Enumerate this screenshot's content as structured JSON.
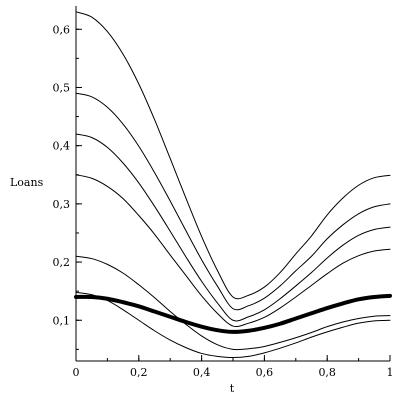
{
  "chart_data": {
    "type": "line",
    "title": "",
    "xlabel": "t",
    "ylabel": "Loans",
    "xlim": [
      0,
      1
    ],
    "ylim": [
      0.03,
      0.64
    ],
    "grid": false,
    "x_ticks": [
      {
        "value": 0,
        "label": "0"
      },
      {
        "value": 0.2,
        "label": "0,2"
      },
      {
        "value": 0.4,
        "label": "0,4"
      },
      {
        "value": 0.6,
        "label": "0,6"
      },
      {
        "value": 0.8,
        "label": "0,8"
      },
      {
        "value": 1,
        "label": "1"
      }
    ],
    "y_ticks": [
      {
        "value": 0.1,
        "label": "0,1"
      },
      {
        "value": 0.2,
        "label": "0,2"
      },
      {
        "value": 0.3,
        "label": "0,3"
      },
      {
        "value": 0.4,
        "label": "0,4"
      },
      {
        "value": 0.5,
        "label": "0,5"
      },
      {
        "value": 0.6,
        "label": "0,6"
      }
    ],
    "x_minor_step": 0.1,
    "y_minor_step": 0.05,
    "x": [
      0,
      0.05,
      0.1,
      0.15,
      0.2,
      0.25,
      0.3,
      0.35,
      0.4,
      0.45,
      0.5,
      0.55,
      0.6,
      0.65,
      0.7,
      0.75,
      0.8,
      0.85,
      0.9,
      0.95,
      1
    ],
    "series": [
      {
        "values": [
          0.63,
          0.621,
          0.596,
          0.557,
          0.506,
          0.445,
          0.378,
          0.31,
          0.244,
          0.186,
          0.14,
          0.143,
          0.157,
          0.182,
          0.214,
          0.245,
          0.281,
          0.31,
          0.332,
          0.345,
          0.349
        ],
        "emphasis": false
      },
      {
        "values": [
          0.49,
          0.484,
          0.466,
          0.437,
          0.399,
          0.354,
          0.305,
          0.254,
          0.204,
          0.159,
          0.12,
          0.125,
          0.138,
          0.159,
          0.185,
          0.21,
          0.24,
          0.264,
          0.283,
          0.295,
          0.3
        ],
        "emphasis": false
      },
      {
        "values": [
          0.42,
          0.414,
          0.397,
          0.37,
          0.336,
          0.296,
          0.253,
          0.209,
          0.167,
          0.13,
          0.1,
          0.106,
          0.118,
          0.137,
          0.159,
          0.182,
          0.207,
          0.229,
          0.246,
          0.256,
          0.26
        ],
        "emphasis": false
      },
      {
        "values": [
          0.35,
          0.344,
          0.33,
          0.309,
          0.28,
          0.248,
          0.212,
          0.177,
          0.142,
          0.112,
          0.09,
          0.095,
          0.105,
          0.121,
          0.14,
          0.16,
          0.18,
          0.198,
          0.211,
          0.219,
          0.222
        ],
        "emphasis": false
      },
      {
        "values": [
          0.14,
          0.14,
          0.137,
          0.131,
          0.124,
          0.115,
          0.106,
          0.097,
          0.089,
          0.083,
          0.08,
          0.082,
          0.087,
          0.094,
          0.103,
          0.112,
          0.121,
          0.129,
          0.136,
          0.14,
          0.142
        ],
        "emphasis": true
      },
      {
        "values": [
          0.21,
          0.206,
          0.196,
          0.181,
          0.161,
          0.139,
          0.115,
          0.093,
          0.073,
          0.058,
          0.05,
          0.051,
          0.055,
          0.062,
          0.07,
          0.079,
          0.089,
          0.097,
          0.103,
          0.107,
          0.108
        ],
        "emphasis": false
      },
      {
        "values": [
          0.148,
          0.144,
          0.134,
          0.118,
          0.1,
          0.082,
          0.066,
          0.053,
          0.043,
          0.038,
          0.036,
          0.038,
          0.044,
          0.052,
          0.061,
          0.071,
          0.08,
          0.088,
          0.095,
          0.099,
          0.1
        ],
        "emphasis": false
      }
    ]
  }
}
